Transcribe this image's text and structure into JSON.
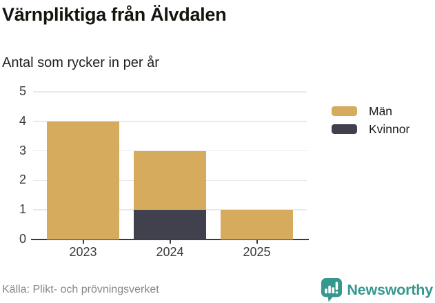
{
  "header": {
    "title": "Värnpliktiga från Älvdalen",
    "subtitle": "Antal som rycker in per år"
  },
  "chart_data": {
    "type": "bar",
    "stacked": true,
    "categories": [
      "2023",
      "2024",
      "2025"
    ],
    "series": [
      {
        "name": "Män",
        "color": "#d7ab5d",
        "values": [
          4,
          2,
          1
        ]
      },
      {
        "name": "Kvinnor",
        "color": "#41414e",
        "values": [
          0,
          1,
          0
        ]
      }
    ],
    "stack_order_bottom_to_top": [
      "Kvinnor",
      "Män"
    ],
    "totals": [
      4,
      3,
      1
    ],
    "title": "Värnpliktiga från Älvdalen",
    "subtitle": "Antal som rycker in per år",
    "xlabel": "",
    "ylabel": "",
    "ylim": [
      0,
      5
    ],
    "yticks": [
      0,
      1,
      2,
      3,
      4,
      5
    ],
    "grid": "horizontal",
    "legend_position": "right"
  },
  "legend": {
    "items": [
      {
        "label": "Män",
        "color": "#d7ab5d"
      },
      {
        "label": "Kvinnor",
        "color": "#41414e"
      }
    ]
  },
  "footer": {
    "source": "Källa: Plikt- och prövningsverket",
    "brand": "Newsworthy"
  },
  "colors": {
    "bar_men": "#d7ab5d",
    "bar_women": "#41414e",
    "axis": "#3a3a3a",
    "gridline": "#e9e9e9",
    "text_dark": "#15150f",
    "text_muted": "#878787",
    "brand_teal": "#36978e"
  }
}
